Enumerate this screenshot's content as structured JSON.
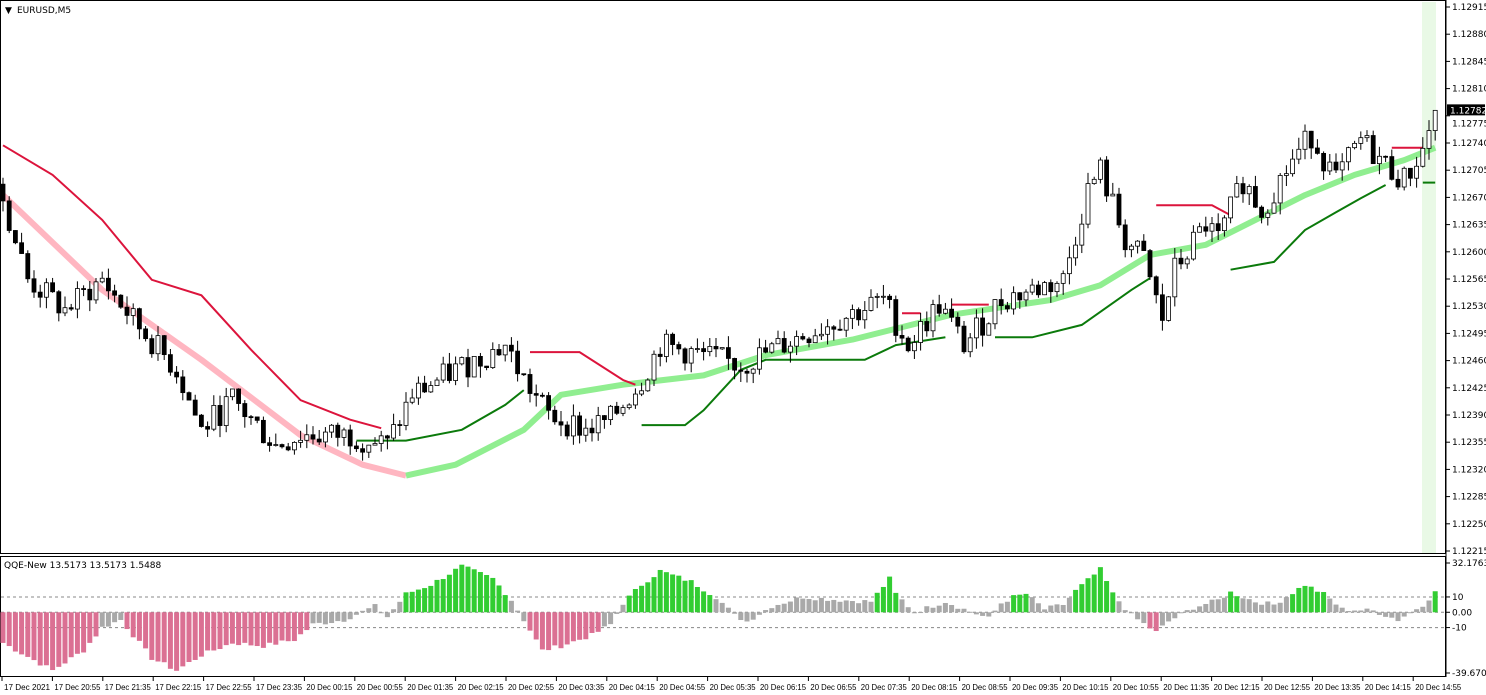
{
  "chart_data": [
    {
      "type": "candlestick",
      "title": "EURUSD,M5",
      "bars": 232,
      "ylim": [
        1.12215,
        1.12915
      ],
      "yticks": [
        "1.12915",
        "1.12880",
        "1.12845",
        "1.12810",
        "1.12775",
        "1.12740",
        "1.12705",
        "1.12670",
        "1.12635",
        "1.12600",
        "1.12565",
        "1.12530",
        "1.12495",
        "1.12460",
        "1.12425",
        "1.12390",
        "1.12355",
        "1.12320",
        "1.12285",
        "1.12250",
        "1.12215"
      ],
      "current_price": "1.12782",
      "close_path": [
        [
          0,
          1.12667
        ],
        [
          4,
          1.12564
        ],
        [
          10,
          1.12525
        ],
        [
          16,
          1.12564
        ],
        [
          21,
          1.12512
        ],
        [
          28,
          1.12448
        ],
        [
          32,
          1.12371
        ],
        [
          37,
          1.12409
        ],
        [
          44,
          1.12351
        ],
        [
          48,
          1.12364
        ],
        [
          56,
          1.12364
        ],
        [
          62,
          1.12351
        ],
        [
          66,
          1.12416
        ],
        [
          73,
          1.12448
        ],
        [
          81,
          1.1248
        ],
        [
          84,
          1.12435
        ],
        [
          88,
          1.1239
        ],
        [
          94,
          1.12371
        ],
        [
          98,
          1.12384
        ],
        [
          103,
          1.12435
        ],
        [
          106,
          1.1248
        ],
        [
          119,
          1.12454
        ],
        [
          129,
          1.12493
        ],
        [
          142,
          1.12538
        ],
        [
          146,
          1.1248
        ],
        [
          151,
          1.12532
        ],
        [
          155,
          1.1248
        ],
        [
          161,
          1.12538
        ],
        [
          166,
          1.12551
        ],
        [
          171,
          1.12564
        ],
        [
          175,
          1.1268
        ],
        [
          177,
          1.12705
        ],
        [
          181,
          1.12615
        ],
        [
          184,
          1.1259
        ],
        [
          187,
          1.12512
        ],
        [
          189,
          1.12577
        ],
        [
          194,
          1.12635
        ],
        [
          196,
          1.12615
        ],
        [
          200,
          1.12692
        ],
        [
          203,
          1.12654
        ],
        [
          208,
          1.12718
        ],
        [
          211,
          1.1275
        ],
        [
          215,
          1.12692
        ],
        [
          219,
          1.12744
        ],
        [
          223,
          1.12712
        ],
        [
          226,
          1.12692
        ],
        [
          229,
          1.12731
        ],
        [
          231,
          1.12782
        ]
      ],
      "ma_line": {
        "down_color": "#ffb6c1",
        "up_color": "#90ee90",
        "turn_bar": 65,
        "points": [
          [
            0,
            1.12673
          ],
          [
            16,
            1.12551
          ],
          [
            32,
            1.12461
          ],
          [
            48,
            1.12364
          ],
          [
            58,
            1.12326
          ],
          [
            65,
            1.12312
          ],
          [
            73,
            1.12326
          ],
          [
            84,
            1.12371
          ],
          [
            90,
            1.12416
          ],
          [
            100,
            1.12429
          ],
          [
            113,
            1.12441
          ],
          [
            123,
            1.12467
          ],
          [
            137,
            1.12487
          ],
          [
            153,
            1.12519
          ],
          [
            169,
            1.12538
          ],
          [
            177,
            1.12557
          ],
          [
            185,
            1.12596
          ],
          [
            194,
            1.12609
          ],
          [
            202,
            1.12641
          ],
          [
            210,
            1.12673
          ],
          [
            218,
            1.12699
          ],
          [
            226,
            1.12718
          ],
          [
            231,
            1.12734
          ]
        ]
      },
      "resistance_segments": {
        "color": "#dc143c",
        "segments": [
          [
            [
              0,
              1.12737
            ],
            [
              8,
              1.12699
            ],
            [
              16,
              1.12641
            ],
            [
              24,
              1.12564
            ],
            [
              32,
              1.12544
            ],
            [
              40,
              1.12474
            ],
            [
              48,
              1.12409
            ],
            [
              56,
              1.12384
            ],
            [
              61,
              1.12373
            ]
          ],
          [
            [
              85,
              1.12471
            ],
            [
              93,
              1.12471
            ],
            [
              100,
              1.12435
            ],
            [
              102,
              1.12429
            ]
          ],
          [
            [
              145,
              1.12521
            ],
            [
              148,
              1.12521
            ]
          ],
          [
            [
              153,
              1.12532
            ],
            [
              159,
              1.12532
            ]
          ],
          [
            [
              186,
              1.1266
            ],
            [
              195,
              1.1266
            ],
            [
              198,
              1.12647
            ]
          ],
          [
            [
              224,
              1.12734
            ],
            [
              229,
              1.12734
            ]
          ]
        ]
      },
      "support_segments": {
        "color": "#0b7a0b",
        "segments": [
          [
            [
              57,
              1.12357
            ],
            [
              65,
              1.12357
            ],
            [
              74,
              1.12371
            ],
            [
              81,
              1.12403
            ],
            [
              84,
              1.12422
            ]
          ],
          [
            [
              103,
              1.12377
            ],
            [
              110,
              1.12377
            ],
            [
              113,
              1.12396
            ],
            [
              119,
              1.12448
            ],
            [
              123,
              1.12461
            ],
            [
              139,
              1.12461
            ],
            [
              144,
              1.1248
            ],
            [
              152,
              1.1249
            ]
          ],
          [
            [
              160,
              1.1249
            ],
            [
              166,
              1.1249
            ],
            [
              174,
              1.12506
            ],
            [
              182,
              1.12551
            ],
            [
              185,
              1.12566
            ]
          ],
          [
            [
              198,
              1.12577
            ],
            [
              205,
              1.12587
            ],
            [
              210,
              1.12628
            ],
            [
              215,
              1.12651
            ],
            [
              219,
              1.12669
            ],
            [
              223,
              1.12686
            ]
          ],
          [
            [
              229,
              1.12689
            ],
            [
              231,
              1.12689
            ]
          ]
        ]
      },
      "xticks": [
        "17 Dec 2021",
        "17 Dec 20:55",
        "17 Dec 21:35",
        "17 Dec 22:15",
        "17 Dec 22:55",
        "17 Dec 23:35",
        "20 Dec 00:15",
        "20 Dec 00:55",
        "20 Dec 01:35",
        "20 Dec 02:15",
        "20 Dec 02:55",
        "20 Dec 03:35",
        "20 Dec 04:15",
        "20 Dec 04:55",
        "20 Dec 05:35",
        "20 Dec 06:15",
        "20 Dec 06:55",
        "20 Dec 07:35",
        "20 Dec 08:15",
        "20 Dec 08:55",
        "20 Dec 09:35",
        "20 Dec 10:15",
        "20 Dec 10:55",
        "20 Dec 11:35",
        "20 Dec 12:15",
        "20 Dec 12:55",
        "20 Dec 13:35",
        "20 Dec 14:15",
        "20 Dec 14:55"
      ]
    },
    {
      "type": "bar",
      "title": "QQE-New 13.5173 13.5173 1.5488",
      "ylim": [
        -39.6702,
        32.1763
      ],
      "yticks": [
        "32.1763",
        "10",
        "0.00",
        "-10",
        "-39.6702"
      ],
      "levels": [
        10,
        0,
        -10
      ],
      "colors": {
        "up": "#32cd32",
        "down": "#db7093",
        "neutral": "#a9a9a9"
      },
      "value_path": [
        [
          0,
          -20
        ],
        [
          8,
          -38
        ],
        [
          13,
          -25
        ],
        [
          16,
          -10
        ],
        [
          19,
          -5
        ],
        [
          24,
          -30
        ],
        [
          28,
          -38
        ],
        [
          32,
          -28
        ],
        [
          37,
          -20
        ],
        [
          42,
          -22
        ],
        [
          47,
          -18
        ],
        [
          50,
          -8
        ],
        [
          55,
          -5
        ],
        [
          60,
          4
        ],
        [
          62,
          -3
        ],
        [
          65,
          12
        ],
        [
          69,
          18
        ],
        [
          74,
          30
        ],
        [
          79,
          22
        ],
        [
          82,
          8
        ],
        [
          84,
          -5
        ],
        [
          87,
          -25
        ],
        [
          90,
          -22
        ],
        [
          95,
          -15
        ],
        [
          98,
          -8
        ],
        [
          100,
          6
        ],
        [
          103,
          18
        ],
        [
          106,
          27
        ],
        [
          111,
          20
        ],
        [
          115,
          10
        ],
        [
          118,
          -2
        ],
        [
          120,
          -6
        ],
        [
          124,
          4
        ],
        [
          129,
          10
        ],
        [
          135,
          8
        ],
        [
          140,
          7
        ],
        [
          143,
          22
        ],
        [
          144,
          12
        ],
        [
          147,
          0
        ],
        [
          152,
          7
        ],
        [
          155,
          2
        ],
        [
          159,
          -4
        ],
        [
          161,
          6
        ],
        [
          163,
          10
        ],
        [
          165,
          12
        ],
        [
          168,
          2
        ],
        [
          171,
          5
        ],
        [
          173,
          14
        ],
        [
          177,
          28
        ],
        [
          179,
          12
        ],
        [
          182,
          -2
        ],
        [
          186,
          -13
        ],
        [
          188,
          -6
        ],
        [
          192,
          3
        ],
        [
          196,
          8
        ],
        [
          198,
          13
        ],
        [
          202,
          7
        ],
        [
          205,
          5
        ],
        [
          210,
          18
        ],
        [
          213,
          12
        ],
        [
          216,
          2
        ],
        [
          221,
          1
        ],
        [
          225,
          -5
        ],
        [
          229,
          5
        ],
        [
          231,
          13
        ]
      ]
    }
  ]
}
